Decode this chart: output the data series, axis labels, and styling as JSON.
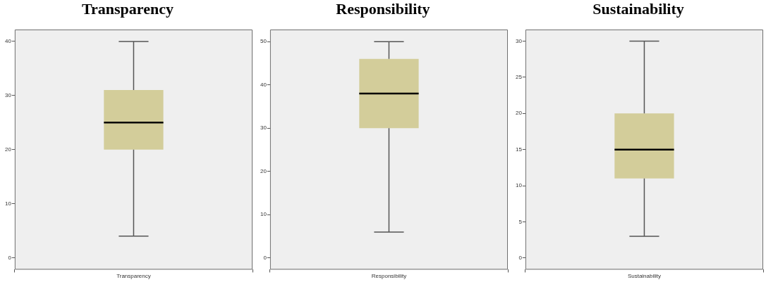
{
  "chart_data": [
    {
      "type": "box",
      "title": "Transparency",
      "categories": [
        "Transparency"
      ],
      "color": "#d3cd9a",
      "ylim": [
        -2.2,
        42.2
      ],
      "yticks": [
        0,
        10,
        20,
        30,
        40
      ],
      "boxes": [
        {
          "low": 4,
          "q1": 20,
          "median": 25,
          "q3": 31,
          "high": 40
        }
      ]
    },
    {
      "type": "box",
      "title": "Responsibility",
      "categories": [
        "Responsibility"
      ],
      "color": "#d3cd9a",
      "ylim": [
        -2.7,
        52.8
      ],
      "yticks": [
        0,
        10,
        20,
        30,
        40,
        50
      ],
      "boxes": [
        {
          "low": 6,
          "q1": 30,
          "median": 38,
          "q3": 46,
          "high": 50
        }
      ]
    },
    {
      "type": "box",
      "title": "Sustainability",
      "categories": [
        "Sustainability"
      ],
      "color": "#d3cd9a",
      "ylim": [
        -1.6,
        31.6
      ],
      "yticks": [
        0,
        5,
        10,
        15,
        20,
        25,
        30
      ],
      "boxes": [
        {
          "low": 3,
          "q1": 11,
          "median": 15,
          "q3": 20,
          "high": 30
        }
      ]
    }
  ]
}
